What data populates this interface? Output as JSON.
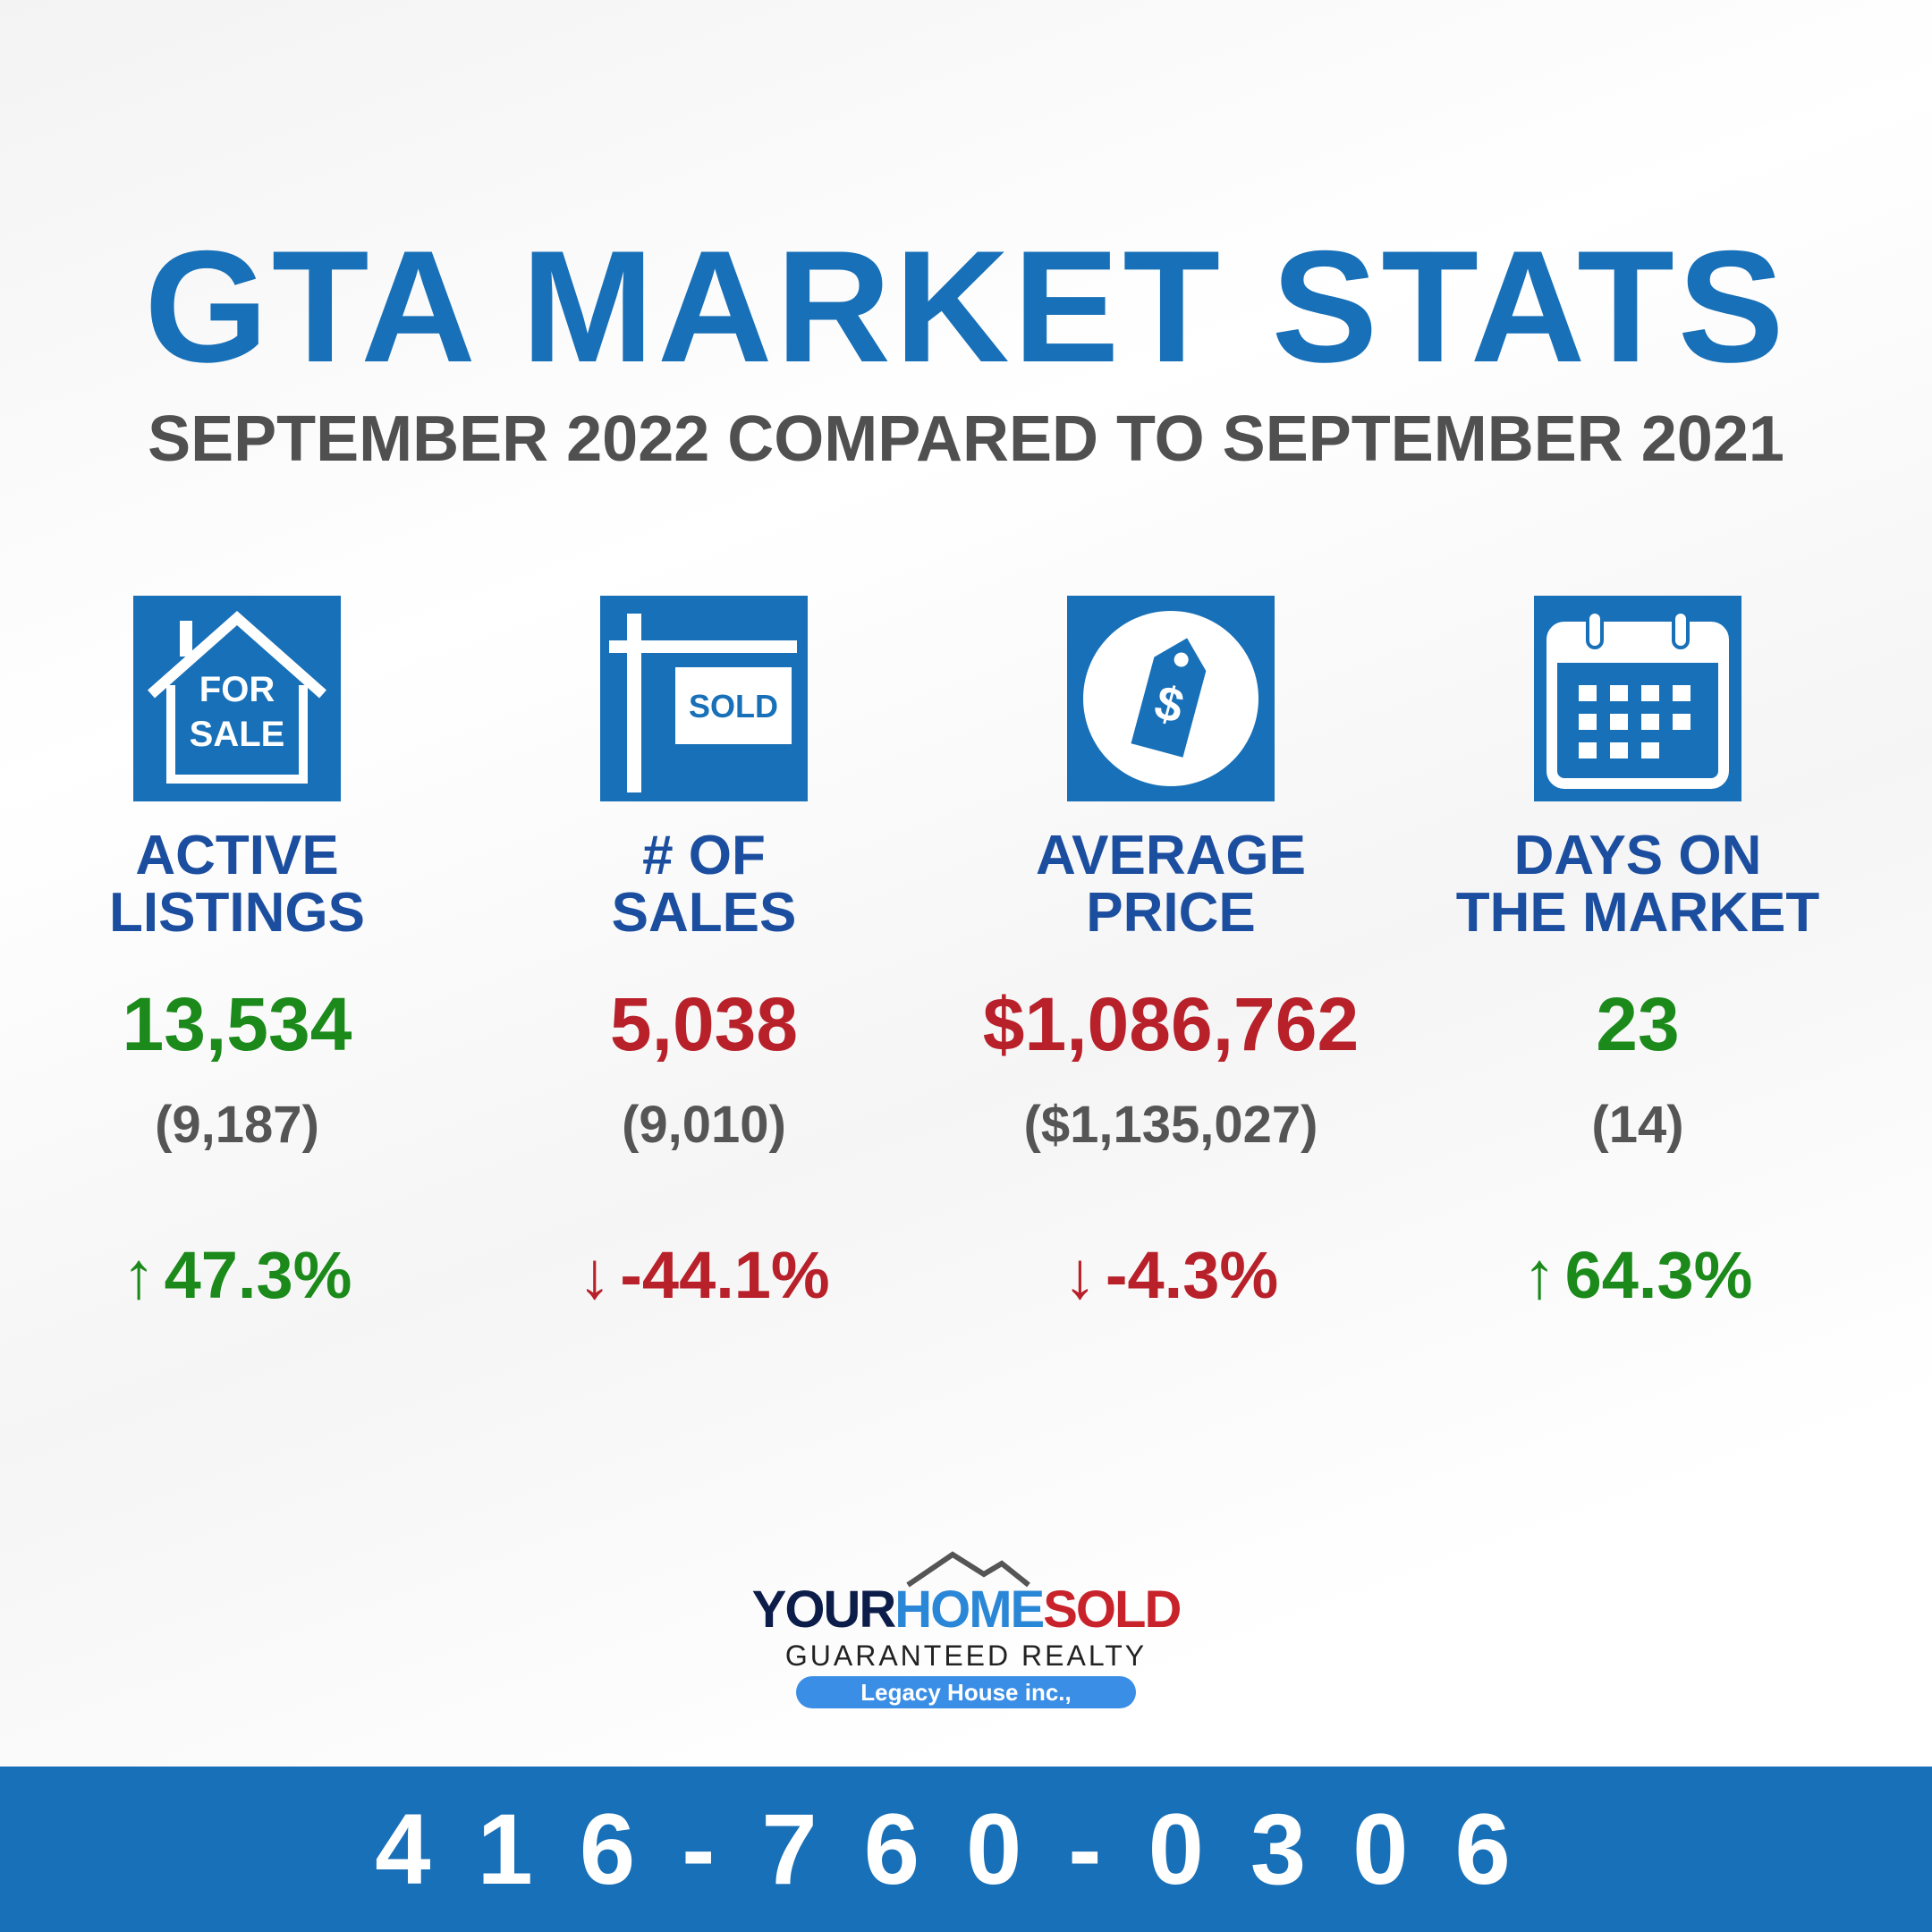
{
  "header": {
    "title": "GTA MARKET STATS",
    "subtitle": "SEPTEMBER 2022 COMPARED TO SEPTEMBER 2021"
  },
  "stats": [
    {
      "label": [
        "ACTIVE",
        "LISTINGS"
      ],
      "value": "13,534",
      "previous": "(9,187)",
      "arrow": "↑",
      "change": "47.3%",
      "color": "#1b8a1b"
    },
    {
      "label": [
        "# OF",
        "SALES"
      ],
      "value": "5,038",
      "previous": "(9,010)",
      "arrow": "↓",
      "change": "-44.1%",
      "color": "#b8202a"
    },
    {
      "label": [
        "AVERAGE",
        "PRICE"
      ],
      "value": "$1,086,762",
      "previous": "($1,135,027)",
      "arrow": "↓",
      "change": "-4.3%",
      "color": "#b8202a"
    },
    {
      "label": [
        "DAYS ON",
        "THE MARKET"
      ],
      "value": "23",
      "previous": "(14)",
      "arrow": "↑",
      "change": "64.3%",
      "color": "#1b8a1b"
    }
  ],
  "icons": {
    "for_sale": [
      "FOR",
      "SALE"
    ],
    "sold": "SOLD",
    "price": "$"
  },
  "logo": {
    "parts": [
      "YOUR",
      "HOME",
      "SOLD"
    ],
    "tagline": "GUARANTEED REALTY",
    "badge": "Legacy House inc.,"
  },
  "footer": {
    "phone": "416-760-0306"
  }
}
